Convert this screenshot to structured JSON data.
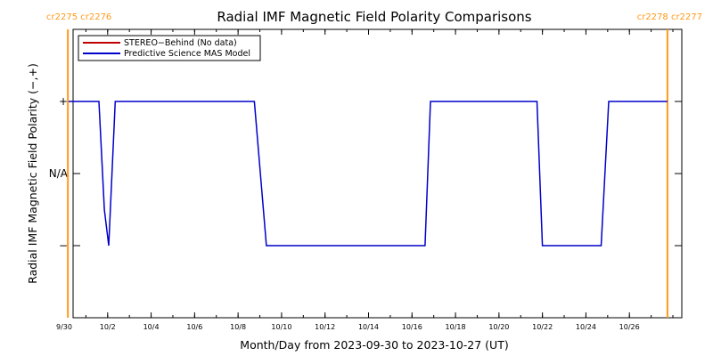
{
  "chart_data": {
    "type": "line",
    "title": "Radial IMF Magnetic Field Polarity Comparisons",
    "xlabel": "Month/Day from 2023-09-30 to 2023-10-27 (UT)",
    "ylabel": "Radial IMF Magnetic Field Polarity (−,+)",
    "grid": false,
    "legend_position": "top-left",
    "x_tick_labels": [
      "9/30",
      "10/2",
      "10/4",
      "10/6",
      "10/8",
      "10/10",
      "10/12",
      "10/14",
      "10/16",
      "10/18",
      "10/20",
      "10/22",
      "10/24",
      "10/26"
    ],
    "x_tick_days": [
      0,
      2,
      4,
      6,
      8,
      10,
      12,
      14,
      16,
      18,
      20,
      22,
      24,
      26
    ],
    "xlim": [
      0,
      28
    ],
    "y_tick_labels": [
      "+",
      "N/A",
      "−"
    ],
    "y_tick_values": [
      1,
      0,
      -1
    ],
    "ylim": [
      -2,
      2
    ],
    "carrington_markers": [
      {
        "label": "cr2275 cr2276",
        "day": 0.17,
        "side": "left"
      },
      {
        "label": "cr2278 cr2277",
        "day": 27.75,
        "side": "right"
      }
    ],
    "series": [
      {
        "name": "STEREO−Behind (No data)",
        "color": "#c00000",
        "points": []
      },
      {
        "name": "Predictive Science MAS Model",
        "color": "#0000cc",
        "points": [
          [
            0.2,
            1
          ],
          [
            1.6,
            1
          ],
          [
            1.85,
            -0.5
          ],
          [
            2.05,
            -1
          ],
          [
            2.35,
            1
          ],
          [
            8.75,
            1
          ],
          [
            9.3,
            -1
          ],
          [
            16.6,
            -1
          ],
          [
            16.85,
            1
          ],
          [
            21.75,
            1
          ],
          [
            22.0,
            -1
          ],
          [
            24.7,
            -1
          ],
          [
            25.05,
            1
          ],
          [
            27.75,
            1
          ]
        ]
      }
    ]
  },
  "colors": {
    "marker_line": "#ff9a1a",
    "axis": "#000000"
  }
}
